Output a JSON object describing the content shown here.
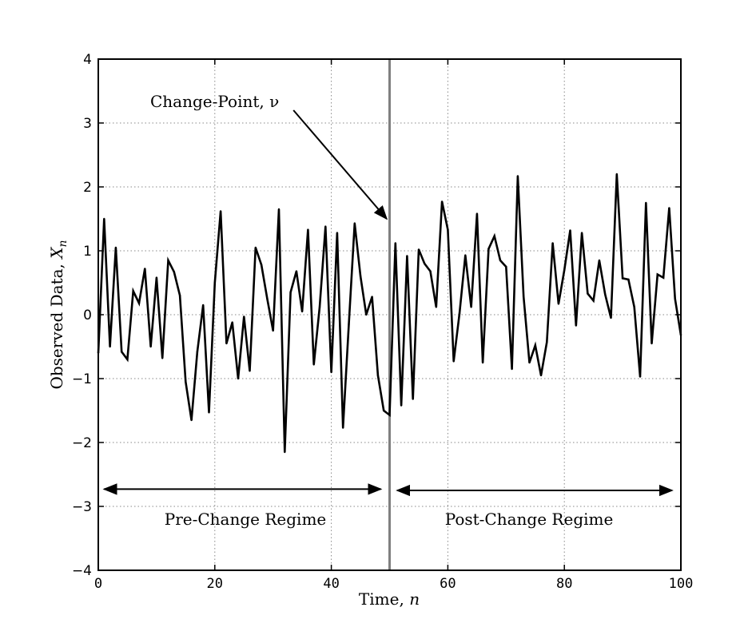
{
  "chart_data": {
    "type": "line",
    "title": "",
    "xlabel": "Time, n",
    "ylabel": "Observed Data, X_n",
    "xlim": [
      0,
      100
    ],
    "ylim": [
      -4,
      4
    ],
    "xticks": [
      0,
      20,
      40,
      60,
      80,
      100
    ],
    "yticks": [
      -4,
      -3,
      -2,
      -1,
      0,
      1,
      2,
      3,
      4
    ],
    "xtick_labels": [
      "0",
      "20",
      "40",
      "60",
      "80",
      "100"
    ],
    "ytick_labels": [
      "−4",
      "−3",
      "−2",
      "−1",
      "0",
      "1",
      "2",
      "3",
      "4"
    ],
    "grid": true,
    "series": [
      {
        "color": "#000000",
        "x": [
          0,
          1,
          2,
          3,
          4,
          5,
          6,
          7,
          8,
          9,
          10,
          11,
          12,
          13,
          14,
          15,
          16,
          17,
          18,
          19,
          20,
          21,
          22,
          23,
          24,
          25,
          26,
          27,
          28,
          29,
          30,
          31,
          32,
          33,
          34,
          35,
          36,
          37,
          38,
          39,
          40,
          41,
          42,
          43,
          44,
          45,
          46,
          47,
          48,
          49,
          50,
          51,
          52,
          53,
          54,
          55,
          56,
          57,
          58,
          59,
          60,
          61,
          62,
          63,
          64,
          65,
          66,
          67,
          68,
          69,
          70,
          71,
          72,
          73,
          74,
          75,
          76,
          77,
          78,
          79,
          80,
          81,
          82,
          83,
          84,
          85,
          86,
          87,
          88,
          89,
          90,
          91,
          92,
          93,
          94,
          95,
          96,
          97,
          98,
          99,
          100
        ],
        "y": [
          -0.6,
          1.5,
          -0.5,
          1.05,
          -0.58,
          -0.7,
          0.37,
          0.18,
          0.72,
          -0.5,
          0.58,
          -0.68,
          0.85,
          0.67,
          0.3,
          -1.05,
          -1.65,
          -0.58,
          0.15,
          -1.53,
          0.5,
          1.62,
          -0.45,
          -0.12,
          -1.0,
          -0.03,
          -0.88,
          1.05,
          0.78,
          0.25,
          -0.25,
          1.65,
          -2.15,
          0.35,
          0.68,
          0.05,
          1.33,
          -0.78,
          0.12,
          1.38,
          -0.9,
          1.28,
          -1.77,
          -0.15,
          1.43,
          0.6,
          0.0,
          0.28,
          -0.95,
          -1.5,
          -1.57,
          1.12,
          -1.42,
          0.92,
          -1.32,
          1.02,
          0.8,
          0.68,
          0.12,
          1.77,
          1.33,
          -0.73,
          0.02,
          0.93,
          0.12,
          1.58,
          -0.75,
          1.03,
          1.23,
          0.85,
          0.75,
          -0.85,
          2.17,
          0.28,
          -0.75,
          -0.48,
          -0.95,
          -0.43,
          1.12,
          0.17,
          0.7,
          1.32,
          -0.17,
          1.28,
          0.33,
          0.22,
          0.85,
          0.32,
          -0.05,
          2.2,
          0.57,
          0.55,
          0.12,
          -0.97,
          1.75,
          -0.45,
          0.63,
          0.58,
          1.67,
          0.25,
          -0.32
        ]
      }
    ],
    "change_point": {
      "x": 50,
      "color": "#808080"
    },
    "annotations": {
      "change_point_label": "Change-Point, ν",
      "pre_change_label": "Pre-Change Regime",
      "post_change_label": "Post-Change Regime"
    },
    "regimes": {
      "pre": {
        "x_start": 1,
        "x_end": 48.5,
        "y": -2.73
      },
      "post": {
        "x_start": 51.3,
        "x_end": 98.5,
        "y": -2.75
      }
    },
    "arrow": {
      "from": [
        33.5,
        3.2
      ],
      "to": [
        49.5,
        1.5
      ]
    }
  }
}
